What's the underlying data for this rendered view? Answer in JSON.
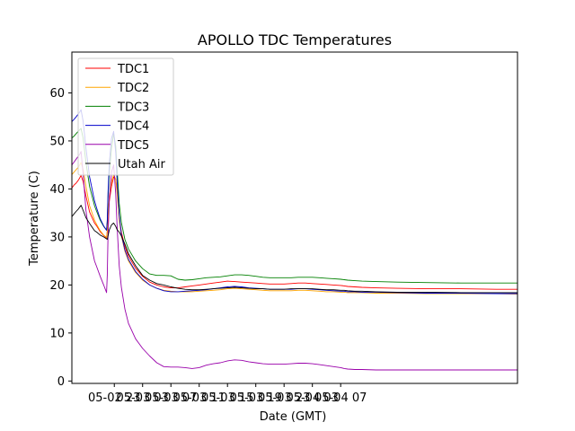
{
  "chart_data": {
    "type": "line",
    "title": "APOLLO TDC Temperatures",
    "xlabel": "Date (GMT)",
    "ylabel": "Temperature (C)",
    "x_unit": "hours",
    "xlim": [
      0,
      63
    ],
    "ylim": [
      -0.5,
      68.5
    ],
    "xticks": [
      {
        "value": 6,
        "label": "05-02 23"
      },
      {
        "value": 10,
        "label": "05-03 03"
      },
      {
        "value": 14,
        "label": "05-03 07"
      },
      {
        "value": 18,
        "label": "05-03 11"
      },
      {
        "value": 22,
        "label": "05-03 15"
      },
      {
        "value": 26,
        "label": "05-03 19"
      },
      {
        "value": 30,
        "label": "05-03 23"
      },
      {
        "value": 34,
        "label": "05-04 03"
      },
      {
        "value": 38,
        "label": "05-04 07"
      }
    ],
    "yticks": [
      0,
      10,
      20,
      30,
      40,
      50,
      60
    ],
    "grid": false,
    "legend_loc": "upper left",
    "series": [
      {
        "name": "TDC1",
        "color": "#ff0000",
        "x": [
          0,
          0.3,
          0.6,
          0.9,
          1.1,
          1.3,
          1.6,
          2.0,
          2.5,
          3.2,
          3.5,
          4.0,
          4.5,
          4.9,
          5.0,
          5.1,
          5.3,
          5.6,
          5.9,
          6.2,
          6.4,
          6.7,
          7.0,
          7.5,
          8.0,
          9.0,
          10.0,
          11.0,
          12.0,
          13.0,
          14.0,
          15.0,
          16.0,
          17.0,
          18.0,
          19.0,
          20.0,
          21.0,
          22.0,
          23.0,
          24.0,
          25.0,
          26.0,
          27.0,
          28.0,
          29.0,
          30.0,
          31.0,
          32.0,
          33.0,
          34.0,
          35.0,
          36.0,
          37.0,
          38.0,
          38.5,
          39.0,
          40.0,
          41.0,
          43.0,
          46.0,
          50.0,
          55.0,
          60.0,
          63.0
        ],
        "y": [
          40.2,
          40.8,
          41.2,
          41.8,
          42.3,
          42.8,
          41.5,
          38.5,
          35.2,
          32.9,
          32.3,
          31.1,
          30.3,
          29.8,
          31.0,
          34.0,
          37.5,
          40.5,
          42.5,
          42.0,
          39.5,
          34.0,
          31.0,
          28.0,
          26.0,
          23.5,
          21.8,
          20.6,
          20.0,
          19.6,
          19.4,
          19.4,
          19.6,
          19.8,
          20.0,
          20.2,
          20.4,
          20.6,
          20.8,
          20.7,
          20.6,
          20.5,
          20.4,
          20.3,
          20.2,
          20.2,
          20.2,
          20.3,
          20.4,
          20.4,
          20.3,
          20.2,
          20.1,
          20.0,
          19.9,
          19.8,
          19.7,
          19.6,
          19.5,
          19.4,
          19.3,
          19.2,
          19.2,
          19.1,
          19.1
        ]
      },
      {
        "name": "TDC2",
        "color": "#ffa500",
        "x": [
          0,
          0.3,
          0.6,
          0.9,
          1.1,
          1.3,
          1.6,
          2.0,
          2.5,
          3.2,
          3.5,
          4.0,
          4.5,
          4.9,
          5.0,
          5.1,
          5.3,
          5.6,
          5.9,
          6.2,
          6.4,
          6.7,
          7.0,
          7.5,
          8.0,
          9.0,
          10.0,
          11.0,
          12.0,
          13.0,
          14.0,
          15.0,
          16.0,
          17.0,
          18.0,
          19.0,
          20.0,
          21.0,
          22.0,
          23.0,
          24.0,
          25.0,
          26.0,
          27.0,
          28.0,
          29.0,
          30.0,
          31.0,
          32.0,
          33.0,
          34.0,
          35.0,
          36.0,
          37.0,
          38.0,
          38.5,
          39.0,
          40.0,
          41.0,
          43.0,
          46.0,
          50.0,
          55.0,
          60.0,
          63.0
        ],
        "y": [
          43.0,
          43.5,
          44.0,
          44.5,
          45.0,
          45.5,
          44.0,
          40.5,
          36.5,
          33.5,
          32.6,
          31.3,
          30.4,
          29.9,
          31.5,
          35.0,
          38.5,
          41.5,
          43.0,
          42.0,
          39.0,
          33.5,
          30.2,
          27.0,
          25.0,
          22.6,
          21.0,
          20.0,
          19.3,
          18.9,
          18.7,
          18.6,
          18.6,
          18.6,
          18.7,
          18.8,
          18.9,
          19.0,
          19.2,
          19.3,
          19.2,
          19.1,
          19.0,
          18.9,
          18.8,
          18.8,
          18.8,
          18.8,
          18.9,
          18.9,
          18.8,
          18.7,
          18.6,
          18.6,
          18.5,
          18.5,
          18.4,
          18.4,
          18.4,
          18.3,
          18.3,
          18.2,
          18.2,
          18.2,
          18.1
        ]
      },
      {
        "name": "TDC3",
        "color": "#008000",
        "x": [
          0,
          0.3,
          0.6,
          0.9,
          1.1,
          1.3,
          1.6,
          2.0,
          2.5,
          3.2,
          3.5,
          4.0,
          4.5,
          4.9,
          5.0,
          5.1,
          5.3,
          5.6,
          5.9,
          6.2,
          6.4,
          6.7,
          7.0,
          7.5,
          8.0,
          9.0,
          10.0,
          11.0,
          12.0,
          13.0,
          14.0,
          15.0,
          16.0,
          17.0,
          18.0,
          19.0,
          20.0,
          21.0,
          22.0,
          23.0,
          24.0,
          25.0,
          26.0,
          27.0,
          28.0,
          29.0,
          30.0,
          31.0,
          32.0,
          33.0,
          34.0,
          35.0,
          36.0,
          37.0,
          38.0,
          38.5,
          39.0,
          40.0,
          41.0,
          43.0,
          46.0,
          50.0,
          55.0,
          60.0,
          63.0
        ],
        "y": [
          50.6,
          51.0,
          51.5,
          52.0,
          52.3,
          52.6,
          50.5,
          45.5,
          40.5,
          36.5,
          35.3,
          33.5,
          32.2,
          31.4,
          33.0,
          38.0,
          43.5,
          48.5,
          51.5,
          49.0,
          44.0,
          37.0,
          33.0,
          29.5,
          27.5,
          25.0,
          23.4,
          22.3,
          22.0,
          22.0,
          21.9,
          21.2,
          21.0,
          21.1,
          21.3,
          21.5,
          21.6,
          21.7,
          21.9,
          22.1,
          22.1,
          22.0,
          21.8,
          21.6,
          21.5,
          21.5,
          21.5,
          21.5,
          21.6,
          21.6,
          21.6,
          21.5,
          21.4,
          21.3,
          21.2,
          21.1,
          21.0,
          20.9,
          20.8,
          20.7,
          20.6,
          20.5,
          20.4,
          20.4,
          20.4
        ]
      },
      {
        "name": "TDC4",
        "color": "#0000cc",
        "x": [
          0,
          0.3,
          0.6,
          0.9,
          1.1,
          1.3,
          1.6,
          2.0,
          2.5,
          3.2,
          3.5,
          4.0,
          4.5,
          4.9,
          5.0,
          5.1,
          5.3,
          5.6,
          5.9,
          6.2,
          6.4,
          6.7,
          7.0,
          7.5,
          8.0,
          9.0,
          10.0,
          11.0,
          12.0,
          13.0,
          14.0,
          15.0,
          16.0,
          17.0,
          18.0,
          19.0,
          20.0,
          21.0,
          22.0,
          23.0,
          24.0,
          25.0,
          26.0,
          27.0,
          28.0,
          29.0,
          30.0,
          31.0,
          32.0,
          33.0,
          34.0,
          35.0,
          36.0,
          37.0,
          38.0,
          38.5,
          39.0,
          40.0,
          41.0,
          43.0,
          46.0,
          50.0,
          55.0,
          60.0,
          63.0
        ],
        "y": [
          54.0,
          54.5,
          55.0,
          55.6,
          56.0,
          56.5,
          54.0,
          48.5,
          42.5,
          37.5,
          36.0,
          33.8,
          32.3,
          31.4,
          33.5,
          39.0,
          45.5,
          50.5,
          52.0,
          47.5,
          41.5,
          34.5,
          30.5,
          27.3,
          25.3,
          22.8,
          21.2,
          20.0,
          19.3,
          18.8,
          18.6,
          18.6,
          18.7,
          18.8,
          18.9,
          19.0,
          19.2,
          19.4,
          19.6,
          19.7,
          19.6,
          19.4,
          19.3,
          19.2,
          19.1,
          19.1,
          19.1,
          19.1,
          19.2,
          19.2,
          19.1,
          19.0,
          18.9,
          18.8,
          18.7,
          18.7,
          18.6,
          18.6,
          18.5,
          18.5,
          18.4,
          18.3,
          18.3,
          18.2,
          18.2
        ]
      },
      {
        "name": "TDC5",
        "color": "#9900aa",
        "x": [
          0,
          0.3,
          0.6,
          0.9,
          1.1,
          1.3,
          1.6,
          2.0,
          2.5,
          3.2,
          3.5,
          4.0,
          4.5,
          4.9,
          5.0,
          5.1,
          5.3,
          5.6,
          5.9,
          6.2,
          6.4,
          6.7,
          7.0,
          7.5,
          8.0,
          9.0,
          10.0,
          11.0,
          12.0,
          13.0,
          14.0,
          15.0,
          16.0,
          17.0,
          18.0,
          19.0,
          20.0,
          21.0,
          22.0,
          23.0,
          24.0,
          25.0,
          26.0,
          27.0,
          28.0,
          29.0,
          30.0,
          31.0,
          32.0,
          33.0,
          34.0,
          35.0,
          36.0,
          37.0,
          38.0,
          38.5,
          39.0,
          40.0,
          41.0,
          43.0,
          46.0,
          50.0,
          55.0,
          60.0,
          63.0
        ],
        "y": [
          45.0,
          45.6,
          46.2,
          46.8,
          47.2,
          47.8,
          43.0,
          35.5,
          30.0,
          25.0,
          23.8,
          21.8,
          20.0,
          18.4,
          22.0,
          30.0,
          38.0,
          43.5,
          45.0,
          39.0,
          32.0,
          24.0,
          19.5,
          15.0,
          12.0,
          8.8,
          6.8,
          5.2,
          3.8,
          3.0,
          2.9,
          2.9,
          2.8,
          2.6,
          2.8,
          3.3,
          3.6,
          3.8,
          4.2,
          4.4,
          4.3,
          4.0,
          3.8,
          3.6,
          3.5,
          3.5,
          3.5,
          3.6,
          3.7,
          3.7,
          3.6,
          3.4,
          3.2,
          3.0,
          2.8,
          2.6,
          2.5,
          2.4,
          2.4,
          2.3,
          2.3,
          2.3,
          2.3,
          2.3,
          2.3
        ]
      },
      {
        "name": "Utah Air",
        "color": "#000000",
        "x": [
          0,
          0.3,
          0.6,
          0.9,
          1.1,
          1.3,
          1.6,
          2.0,
          2.5,
          3.2,
          3.5,
          4.0,
          4.5,
          4.9,
          5.0,
          5.1,
          5.3,
          5.6,
          5.9,
          6.2,
          6.4,
          6.7,
          7.0,
          7.5,
          8.0,
          9.0,
          10.0,
          11.0,
          12.0,
          13.0,
          14.0,
          15.0,
          16.0,
          17.0,
          18.0,
          19.0,
          20.0,
          21.0,
          22.0,
          23.0,
          24.0,
          25.0,
          26.0,
          27.0,
          28.0,
          29.0,
          30.0,
          31.0,
          32.0,
          33.0,
          34.0,
          35.0,
          36.0,
          37.0,
          38.0,
          38.5,
          39.0,
          40.0,
          41.0,
          43.0,
          46.0,
          50.0,
          55.0,
          60.0,
          63.0
        ],
        "y": [
          34.2,
          34.8,
          35.3,
          35.8,
          36.2,
          36.6,
          35.5,
          34.0,
          32.8,
          31.3,
          31.0,
          30.4,
          30.0,
          29.6,
          29.5,
          30.2,
          31.5,
          32.5,
          32.9,
          32.2,
          31.5,
          31.0,
          30.2,
          28.5,
          26.5,
          24.0,
          22.0,
          21.0,
          20.3,
          20.0,
          19.6,
          19.3,
          19.1,
          19.0,
          19.0,
          19.1,
          19.2,
          19.3,
          19.4,
          19.5,
          19.4,
          19.3,
          19.2,
          19.2,
          19.1,
          19.1,
          19.1,
          19.2,
          19.2,
          19.2,
          19.2,
          19.1,
          19.0,
          19.0,
          18.9,
          18.9,
          18.8,
          18.7,
          18.7,
          18.6,
          18.5,
          18.5,
          18.4,
          18.4,
          18.4
        ]
      }
    ]
  }
}
